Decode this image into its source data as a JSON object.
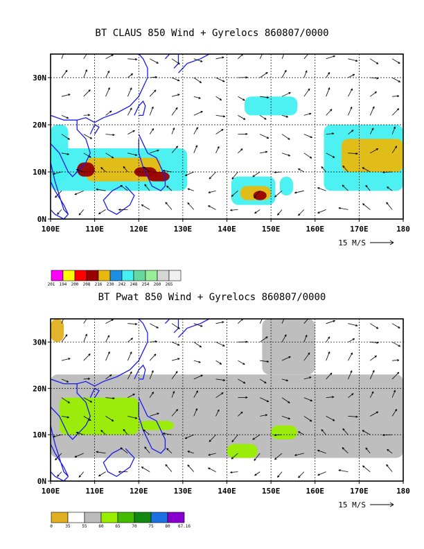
{
  "chart_data": [
    {
      "type": "heatmap",
      "title": "BT CLAUS 850 Wind + Gyrelocs 860807/0000",
      "x_ticks": [
        "100E",
        "110E",
        "120E",
        "130E",
        "140E",
        "150E",
        "160E",
        "170E",
        "180"
      ],
      "y_ticks": [
        "0N",
        "10N",
        "20N",
        "30N"
      ],
      "xlim": [
        100,
        180
      ],
      "ylim": [
        0,
        35
      ],
      "grid": true,
      "reference_vector": "15 M/S",
      "colorbar_labels": [
        "201",
        "194",
        "200",
        "208",
        "216",
        "230",
        "242",
        "248",
        "254",
        "260",
        "265"
      ],
      "colorbar_colors": [
        "#ff00ff",
        "#ffff00",
        "#ff0000",
        "#990000",
        "#e8b90c",
        "#1e8fe0",
        "#44f0f0",
        "#66d9a0",
        "#99ee99",
        "#d6d6d6",
        "#f0f0f0"
      ],
      "regions": [
        {
          "lon": [
            100,
            104
          ],
          "lat": [
            8,
            20
          ],
          "level": 6
        },
        {
          "lon": [
            100,
            131
          ],
          "lat": [
            6,
            15
          ],
          "level": 6
        },
        {
          "lon": [
            108,
            125
          ],
          "lat": [
            8,
            13
          ],
          "level": 4
        },
        {
          "lon": [
            119,
            124
          ],
          "lat": [
            9,
            11
          ],
          "level": 3
        },
        {
          "lon": [
            106,
            110
          ],
          "lat": [
            9,
            12
          ],
          "level": 3
        },
        {
          "lon": [
            122,
            127
          ],
          "lat": [
            8,
            10
          ],
          "level": 3
        },
        {
          "lon": [
            141,
            151
          ],
          "lat": [
            3,
            9
          ],
          "level": 6
        },
        {
          "lon": [
            143,
            150
          ],
          "lat": [
            4,
            7
          ],
          "level": 4
        },
        {
          "lon": [
            146,
            149
          ],
          "lat": [
            4,
            6
          ],
          "level": 3
        },
        {
          "lon": [
            144,
            156
          ],
          "lat": [
            22,
            26
          ],
          "level": 6
        },
        {
          "lon": [
            162,
            180
          ],
          "lat": [
            6,
            20
          ],
          "level": 6
        },
        {
          "lon": [
            166,
            180
          ],
          "lat": [
            10,
            17
          ],
          "level": 4
        },
        {
          "lon": [
            152,
            155
          ],
          "lat": [
            5,
            9
          ],
          "level": 6
        }
      ]
    },
    {
      "type": "heatmap",
      "title": "BT Pwat 850 Wind + Gyrelocs 860807/0000",
      "x_ticks": [
        "100E",
        "110E",
        "120E",
        "130E",
        "140E",
        "150E",
        "160E",
        "170E",
        "180"
      ],
      "y_ticks": [
        "0N",
        "10N",
        "20N",
        "30N"
      ],
      "xlim": [
        100,
        180
      ],
      "ylim": [
        0,
        35
      ],
      "grid": true,
      "reference_vector": "15 M/S",
      "colorbar_labels": [
        "0",
        "35",
        "55",
        "60",
        "65",
        "70",
        "75",
        "80",
        "67.16"
      ],
      "colorbar_colors": [
        "#e0b020",
        "#ffffff",
        "#bbbbbb",
        "#99ee00",
        "#44bb00",
        "#118811",
        "#1e70e0",
        "#8800cc"
      ],
      "regions": [
        {
          "lon": [
            100,
            103
          ],
          "lat": [
            30,
            35
          ],
          "level": 0
        },
        {
          "lon": [
            100,
            180
          ],
          "lat": [
            5,
            23
          ],
          "level": 2
        },
        {
          "lon": [
            148,
            160
          ],
          "lat": [
            23,
            35
          ],
          "level": 2
        },
        {
          "lon": [
            102,
            120
          ],
          "lat": [
            10,
            18
          ],
          "level": 3
        },
        {
          "lon": [
            120,
            128
          ],
          "lat": [
            11,
            13
          ],
          "level": 3
        },
        {
          "lon": [
            150,
            156
          ],
          "lat": [
            9,
            12
          ],
          "level": 3
        },
        {
          "lon": [
            140,
            147
          ],
          "lat": [
            5,
            8
          ],
          "level": 3
        }
      ]
    }
  ]
}
